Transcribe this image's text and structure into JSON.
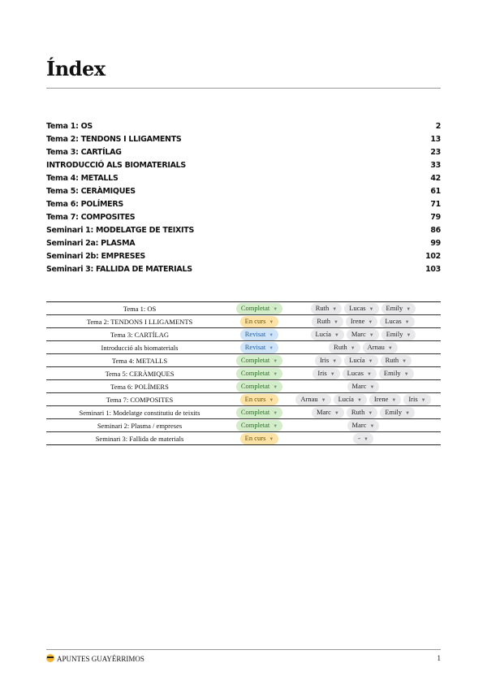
{
  "title": "Índex",
  "toc": [
    {
      "label": "Tema 1: OS",
      "page": "2"
    },
    {
      "label": "Tema 2: TENDONS I LLIGAMENTS",
      "page": "13"
    },
    {
      "label": "Tema 3: CARTÍLAG",
      "page": "23"
    },
    {
      "label": "INTRODUCCIÓ ALS BIOMATERIALS",
      "page": "33"
    },
    {
      "label": "Tema 4: METALLS",
      "page": "42"
    },
    {
      "label": "Tema 5: CERÀMIQUES",
      "page": "61"
    },
    {
      "label": "Tema 6: POLÍMERS",
      "page": "71"
    },
    {
      "label": "Tema 7: COMPOSITES",
      "page": "79"
    },
    {
      "label": "Seminari 1: MODELATGE DE TEIXITS",
      "page": "86"
    },
    {
      "label": "Seminari 2a: PLASMA",
      "page": "99"
    },
    {
      "label": "Seminari 2b: EMPRESES",
      "page": "102"
    },
    {
      "label": "Seminari 3: FALLIDA DE MATERIALS",
      "page": "103"
    }
  ],
  "table": [
    {
      "name": "Tema 1: OS",
      "status": "Completat",
      "people": [
        "Ruth",
        "Lucas",
        "Emily"
      ]
    },
    {
      "name": "Tema 2: TENDONS I LLIGAMENTS",
      "status": "En curs",
      "people": [
        "Ruth",
        "Irene",
        "Lucas"
      ]
    },
    {
      "name": "Tema 3: CARTÍLAG",
      "status": "Revisat",
      "people": [
        "Lucía",
        "Marc",
        "Emily"
      ]
    },
    {
      "name": "Introducció als biomaterials",
      "status": "Revisat",
      "people": [
        "Ruth",
        "Arnau"
      ]
    },
    {
      "name": "Tema 4: METALLS",
      "status": "Completat",
      "people": [
        "Iris",
        "Lucía",
        "Ruth"
      ]
    },
    {
      "name": "Tema 5: CERÀMIQUES",
      "status": "Completat",
      "people": [
        "Iris",
        "Lucas",
        "Emily"
      ]
    },
    {
      "name": "Tema 6: POLÍMERS",
      "status": "Completat",
      "people": [
        "Marc"
      ]
    },
    {
      "name": "Tema 7: COMPOSITES",
      "status": "En curs",
      "people": [
        "Arnau",
        "Lucía",
        "Irene",
        "Iris"
      ]
    },
    {
      "name": "Seminari 1: Modelatge constitutiu de teixits",
      "status": "Completat",
      "people": [
        "Marc",
        "Ruth",
        "Emily"
      ]
    },
    {
      "name": "Seminari 2: Plasma / empreses",
      "status": "Completat",
      "people": [
        "Marc"
      ]
    },
    {
      "name": "Seminari 3: Fallida de materials",
      "status": "En curs",
      "people": [
        "-"
      ]
    }
  ],
  "status_colors": {
    "Completat": "#d3ecc9",
    "En curs": "#fbe3a8",
    "Revisat": "#cfe4f6"
  },
  "footer": {
    "icon": "sunglasses-emoji-icon",
    "brand": "APUNTES GUAYÉRRIMOS",
    "page": "1"
  }
}
